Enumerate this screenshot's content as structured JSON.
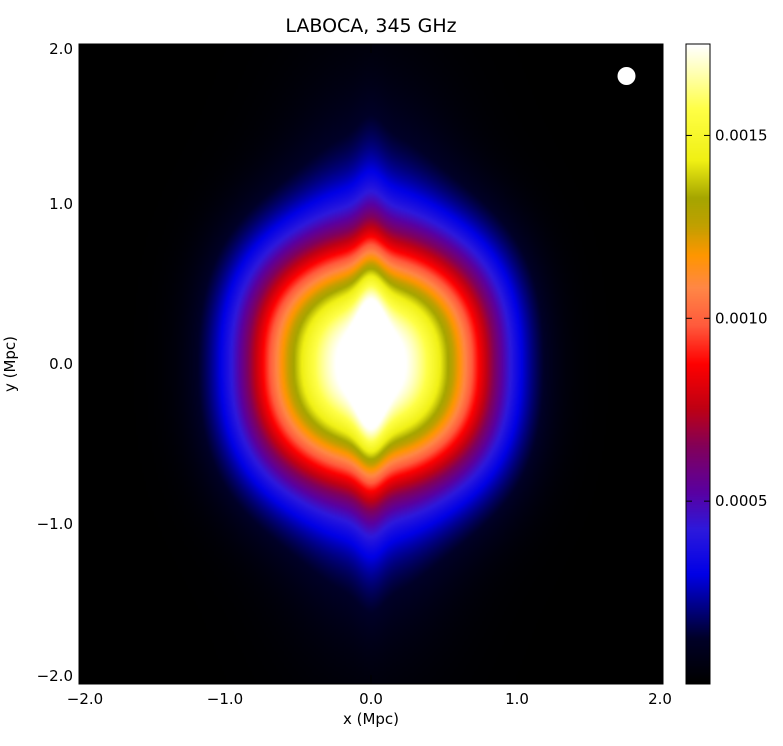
{
  "chart_data": {
    "type": "heatmap",
    "title": "LABOCA, 345 GHz",
    "xlabel": "x (Mpc)",
    "ylabel": "y (Mpc)",
    "xlim": [
      -2.0,
      2.0
    ],
    "ylim": [
      -2.0,
      2.0
    ],
    "x_ticks": [
      "−2.0",
      "−1.0",
      "0.0",
      "1.0",
      "2.0"
    ],
    "y_ticks": [
      "−2.0",
      "−1.0",
      "0.0",
      "1.0",
      "2.0"
    ],
    "x_tick_values": [
      -2.0,
      -1.0,
      0.0,
      1.0,
      2.0
    ],
    "y_tick_values": [
      -2.0,
      -1.0,
      0.0,
      1.0,
      2.0
    ],
    "colorbar": {
      "min": 0.0,
      "max": 0.00175,
      "ticks": [
        "0.0015",
        "0.0010",
        "0.0005"
      ],
      "tick_values": [
        0.0015,
        0.001,
        0.0005
      ]
    },
    "peak_value": 0.00175,
    "peak_location": [
      0.0,
      0.0
    ],
    "beam_marker": {
      "x": 1.75,
      "y": 1.8,
      "color": "#ffffff"
    },
    "grid": false
  }
}
